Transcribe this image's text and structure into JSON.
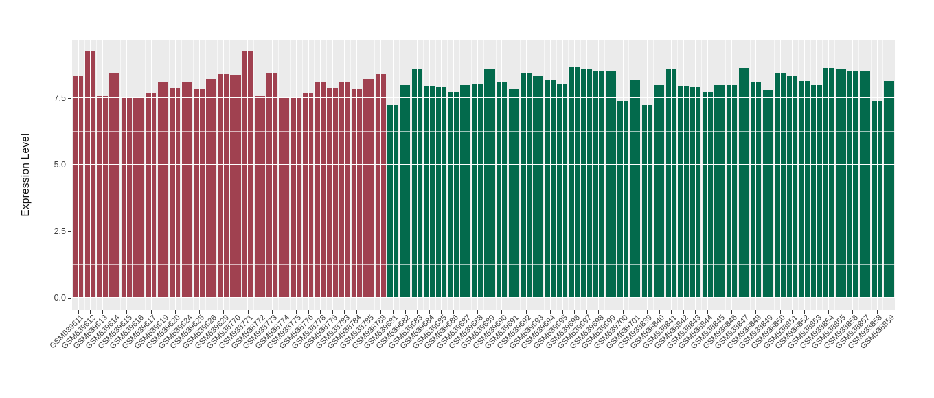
{
  "chart_data": {
    "type": "bar",
    "title": "",
    "xlabel": "",
    "ylabel": "Expression Level",
    "ylim": [
      0,
      9.7
    ],
    "y_ticks": [
      0,
      2.5,
      5,
      7.5
    ],
    "y_tick_labels": [
      "0.0",
      "2.5",
      "5.0",
      "7.5"
    ],
    "y_minor_ticks": [
      1.25,
      3.75,
      6.25,
      8.75
    ],
    "grid": "white major and minor gridlines on grey panel",
    "legend": "none",
    "panel_color": "#EBEBEB",
    "bar_color_groups": {
      "red": "#A04150",
      "green": "#036A4C"
    },
    "bars": [
      {
        "label": "GSM639611",
        "value": 8.33,
        "group": "red"
      },
      {
        "label": "GSM639612",
        "value": 9.29,
        "group": "red"
      },
      {
        "label": "GSM639613",
        "value": 7.58,
        "group": "red"
      },
      {
        "label": "GSM639614",
        "value": 8.44,
        "group": "red"
      },
      {
        "label": "GSM639615",
        "value": 7.57,
        "group": "red"
      },
      {
        "label": "GSM639616",
        "value": 7.51,
        "group": "red"
      },
      {
        "label": "GSM639617",
        "value": 7.71,
        "group": "red"
      },
      {
        "label": "GSM639619",
        "value": 8.09,
        "group": "red"
      },
      {
        "label": "GSM639620",
        "value": 7.9,
        "group": "red"
      },
      {
        "label": "GSM639624",
        "value": 8.11,
        "group": "red"
      },
      {
        "label": "GSM639625",
        "value": 7.87,
        "group": "red"
      },
      {
        "label": "GSM639626",
        "value": 8.23,
        "group": "red"
      },
      {
        "label": "GSM639629",
        "value": 8.42,
        "group": "red"
      },
      {
        "label": "GSM938770",
        "value": 8.35,
        "group": "red"
      },
      {
        "label": "GSM938771",
        "value": 9.29,
        "group": "red"
      },
      {
        "label": "GSM938772",
        "value": 7.58,
        "group": "red"
      },
      {
        "label": "GSM938773",
        "value": 8.44,
        "group": "red"
      },
      {
        "label": "GSM938774",
        "value": 7.56,
        "group": "red"
      },
      {
        "label": "GSM938775",
        "value": 7.5,
        "group": "red"
      },
      {
        "label": "GSM938776",
        "value": 7.72,
        "group": "red"
      },
      {
        "label": "GSM938778",
        "value": 8.09,
        "group": "red"
      },
      {
        "label": "GSM938779",
        "value": 7.9,
        "group": "red"
      },
      {
        "label": "GSM938783",
        "value": 8.1,
        "group": "red"
      },
      {
        "label": "GSM938784",
        "value": 7.86,
        "group": "red"
      },
      {
        "label": "GSM938785",
        "value": 8.23,
        "group": "red"
      },
      {
        "label": "GSM938788",
        "value": 8.42,
        "group": "red"
      },
      {
        "label": "GSM639681",
        "value": 7.24,
        "group": "green"
      },
      {
        "label": "GSM639682",
        "value": 8.0,
        "group": "green"
      },
      {
        "label": "GSM639683",
        "value": 8.59,
        "group": "green"
      },
      {
        "label": "GSM639684",
        "value": 7.97,
        "group": "green"
      },
      {
        "label": "GSM639685",
        "value": 7.92,
        "group": "green"
      },
      {
        "label": "GSM639686",
        "value": 7.74,
        "group": "green"
      },
      {
        "label": "GSM639687",
        "value": 8.01,
        "group": "green"
      },
      {
        "label": "GSM639688",
        "value": 8.02,
        "group": "green"
      },
      {
        "label": "GSM639689",
        "value": 8.63,
        "group": "green"
      },
      {
        "label": "GSM639690",
        "value": 8.11,
        "group": "green"
      },
      {
        "label": "GSM639691",
        "value": 7.84,
        "group": "green"
      },
      {
        "label": "GSM639692",
        "value": 8.47,
        "group": "green"
      },
      {
        "label": "GSM639693",
        "value": 8.34,
        "group": "green"
      },
      {
        "label": "GSM639694",
        "value": 8.17,
        "group": "green"
      },
      {
        "label": "GSM639695",
        "value": 8.03,
        "group": "green"
      },
      {
        "label": "GSM639696",
        "value": 8.66,
        "group": "green"
      },
      {
        "label": "GSM639697",
        "value": 8.58,
        "group": "green"
      },
      {
        "label": "GSM639698",
        "value": 8.52,
        "group": "green"
      },
      {
        "label": "GSM639699",
        "value": 8.52,
        "group": "green"
      },
      {
        "label": "GSM639700",
        "value": 7.41,
        "group": "green"
      },
      {
        "label": "GSM639701",
        "value": 8.17,
        "group": "green"
      },
      {
        "label": "GSM938839",
        "value": 7.26,
        "group": "green"
      },
      {
        "label": "GSM938840",
        "value": 8.0,
        "group": "green"
      },
      {
        "label": "GSM938841",
        "value": 8.58,
        "group": "green"
      },
      {
        "label": "GSM938842",
        "value": 7.97,
        "group": "green"
      },
      {
        "label": "GSM938843",
        "value": 7.93,
        "group": "green"
      },
      {
        "label": "GSM938844",
        "value": 7.74,
        "group": "green"
      },
      {
        "label": "GSM938845",
        "value": 8.01,
        "group": "green"
      },
      {
        "label": "GSM938846",
        "value": 8.01,
        "group": "green"
      },
      {
        "label": "GSM938847",
        "value": 8.65,
        "group": "green"
      },
      {
        "label": "GSM938848",
        "value": 8.1,
        "group": "green"
      },
      {
        "label": "GSM938849",
        "value": 7.83,
        "group": "green"
      },
      {
        "label": "GSM938850",
        "value": 8.46,
        "group": "green"
      },
      {
        "label": "GSM938851",
        "value": 8.34,
        "group": "green"
      },
      {
        "label": "GSM938852",
        "value": 8.16,
        "group": "green"
      },
      {
        "label": "GSM938853",
        "value": 8.01,
        "group": "green"
      },
      {
        "label": "GSM938854",
        "value": 8.65,
        "group": "green"
      },
      {
        "label": "GSM938855",
        "value": 8.59,
        "group": "green"
      },
      {
        "label": "GSM938856",
        "value": 8.52,
        "group": "green"
      },
      {
        "label": "GSM938857",
        "value": 8.52,
        "group": "green"
      },
      {
        "label": "GSM938858",
        "value": 7.4,
        "group": "green"
      },
      {
        "label": "GSM938859",
        "value": 8.16,
        "group": "green"
      }
    ]
  }
}
